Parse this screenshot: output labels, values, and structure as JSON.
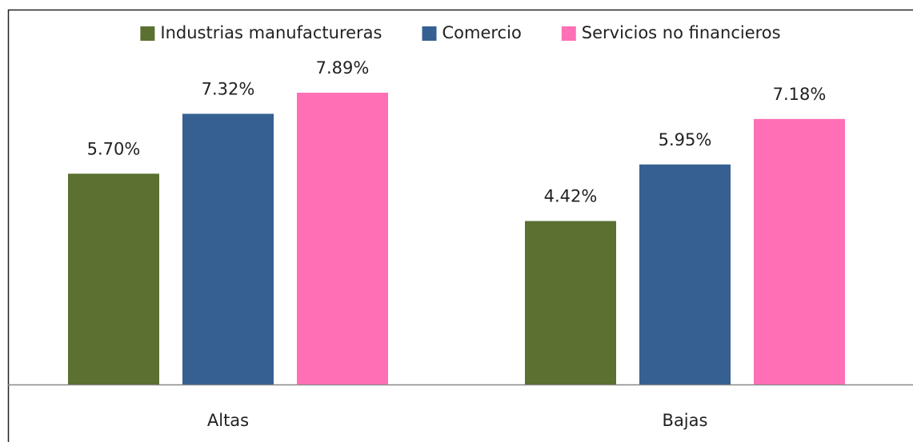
{
  "chart_data": {
    "type": "bar",
    "categories": [
      "Altas",
      "Bajas"
    ],
    "series": [
      {
        "name": "Industrias manufactureras",
        "color": "#5b7031",
        "values": [
          5.7,
          4.42
        ],
        "value_labels": [
          "5.70%",
          "4.42%"
        ]
      },
      {
        "name": "Comercio",
        "color": "#366092",
        "values": [
          7.32,
          5.95
        ],
        "value_labels": [
          "7.32%",
          "5.95%"
        ]
      },
      {
        "name": "Servicios no financieros",
        "color": "#ff6fb5",
        "values": [
          7.89,
          7.18
        ],
        "value_labels": [
          "7.89%",
          "7.18%"
        ]
      }
    ],
    "ylim": [
      0,
      9
    ],
    "legend": "top"
  }
}
